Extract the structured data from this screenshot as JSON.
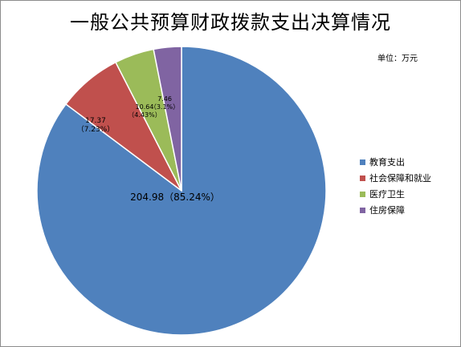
{
  "chart_data": {
    "type": "pie",
    "title": "一般公共预算财政拨款支出决算情况",
    "unit": "单位：万元",
    "categories": [
      "教育支出",
      "社会保障和就业",
      "医疗卫生",
      "住房保障"
    ],
    "values": [
      204.98,
      17.37,
      10.64,
      7.46
    ],
    "percents": [
      "85.24%",
      "7.23%",
      "4.43%",
      "3.1%"
    ],
    "colors": [
      "#4f81bd",
      "#c0504d",
      "#9bbb59",
      "#8064a2"
    ],
    "data_labels": [
      [
        "204.98（85.24%）"
      ],
      [
        "17.37",
        "（7.23%）"
      ],
      [
        "10.64",
        "（4.43%）"
      ],
      [
        "7.46",
        "（3.1%）"
      ]
    ],
    "legend_position": "right"
  }
}
